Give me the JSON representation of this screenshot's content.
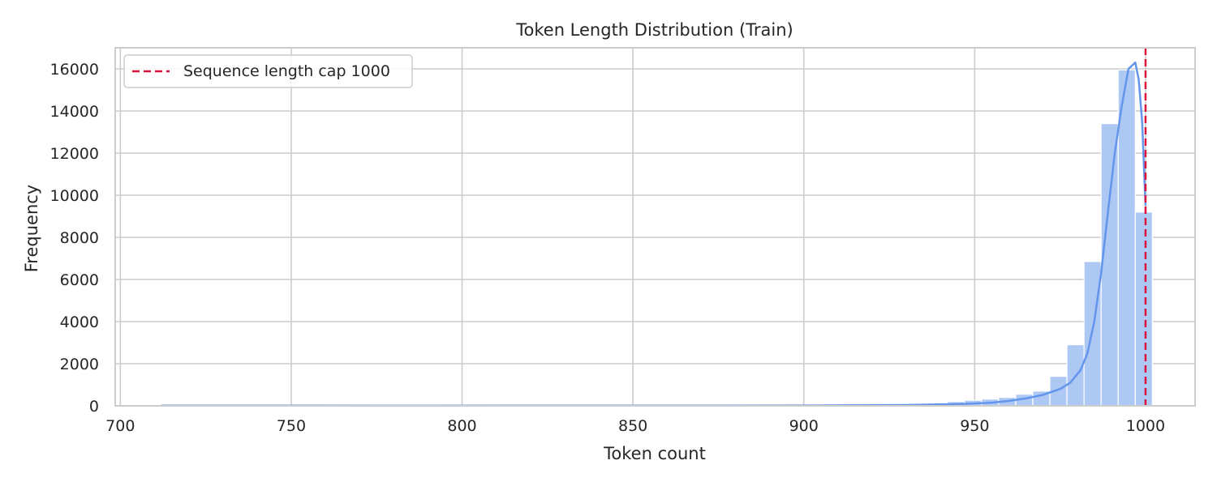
{
  "chart_data": {
    "type": "bar",
    "title": "Token Length Distribution (Train)",
    "xlabel": "Token count",
    "ylabel": "Frequency",
    "xlim": [
      698.5,
      1014.5
    ],
    "ylim": [
      0,
      17000
    ],
    "xticks": [
      700,
      750,
      800,
      850,
      900,
      950,
      1000
    ],
    "yticks": [
      0,
      2000,
      4000,
      6000,
      8000,
      10000,
      12000,
      14000,
      16000
    ],
    "grid": true,
    "legend_position": "top-left",
    "histogram": {
      "bin_edges": [
        712,
        717,
        722,
        727,
        732,
        737,
        742,
        747,
        752,
        757,
        762,
        767,
        772,
        777,
        782,
        787,
        792,
        797,
        802,
        807,
        812,
        817,
        822,
        827,
        832,
        837,
        842,
        847,
        852,
        857,
        862,
        867,
        872,
        877,
        882,
        887,
        892,
        897,
        902,
        907,
        912,
        917,
        922,
        927,
        932,
        937,
        942,
        947,
        952,
        957,
        962,
        967,
        972,
        977,
        982,
        987,
        992,
        997,
        1002
      ],
      "counts": [
        8,
        4,
        3,
        3,
        3,
        3,
        4,
        4,
        3,
        3,
        3,
        4,
        4,
        3,
        3,
        3,
        3,
        4,
        5,
        5,
        4,
        3,
        3,
        4,
        4,
        5,
        5,
        5,
        5,
        6,
        6,
        8,
        9,
        10,
        14,
        18,
        22,
        30,
        35,
        45,
        52,
        60,
        70,
        85,
        100,
        120,
        200,
        260,
        320,
        400,
        550,
        700,
        1400,
        2900,
        6850,
        13400,
        15950,
        9200
      ],
      "color": "#aec8f4"
    },
    "series": [
      {
        "type": "kde",
        "color": "#6495ed",
        "x": [
          712,
          740,
          780,
          820,
          860,
          900,
          930,
          945,
          950,
          955,
          960,
          965,
          970,
          975,
          978,
          981,
          983,
          985,
          987,
          989,
          991,
          993,
          995,
          997,
          998,
          999,
          1000
        ],
        "y": [
          10,
          8,
          7,
          8,
          10,
          15,
          40,
          80,
          110,
          150,
          230,
          350,
          520,
          800,
          1100,
          1700,
          2500,
          4000,
          6300,
          9200,
          12000,
          14200,
          16000,
          16300,
          15500,
          13500,
          9500
        ]
      },
      {
        "type": "vline",
        "name": "Sequence length cap 1000",
        "x": 1000,
        "color": "#dc143c",
        "dash": "dashed"
      }
    ]
  }
}
